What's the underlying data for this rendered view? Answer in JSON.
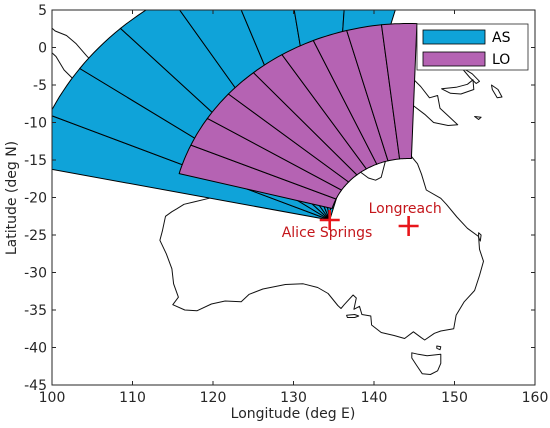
{
  "chart_data": {
    "type": "map",
    "title": "",
    "xlabel": "Longitude (deg E)",
    "ylabel": "Latitude (deg N)",
    "xlim": [
      100,
      160
    ],
    "ylim": [
      -45,
      5
    ],
    "xticks": [
      100,
      110,
      120,
      130,
      140,
      150,
      160
    ],
    "yticks": [
      5,
      0,
      -5,
      -10,
      -15,
      -20,
      -25,
      -30,
      -35,
      -40,
      -45
    ],
    "legend": {
      "placement": "top-right",
      "entries": [
        {
          "name": "AS",
          "color": "#0fa3d9"
        },
        {
          "name": "LO",
          "color": "#b563b3"
        }
      ]
    },
    "sites": [
      {
        "name": "Alice Springs",
        "lon": 134.5,
        "lat": -23.0,
        "color": "#e8161b"
      },
      {
        "name": "Longreach",
        "lon": 144.3,
        "lat": -23.8,
        "color": "#e8161b"
      }
    ],
    "coverage": [
      {
        "name": "AS",
        "center_lon": 134.5,
        "center_lat": -23.0,
        "inner_radius_deg": 0,
        "outer_radius_deg": 35,
        "bearing_start_deg": -78,
        "bearing_end_deg": 15,
        "beams": 8,
        "color": "#0fa3d9"
      },
      {
        "name": "LO",
        "center_lon": 144.3,
        "center_lat": -23.8,
        "inner_radius_deg": 9,
        "outer_radius_deg": 27,
        "bearing_start_deg": -75,
        "bearing_end_deg": 2,
        "beams": 9,
        "color": "#b563b3"
      }
    ]
  }
}
